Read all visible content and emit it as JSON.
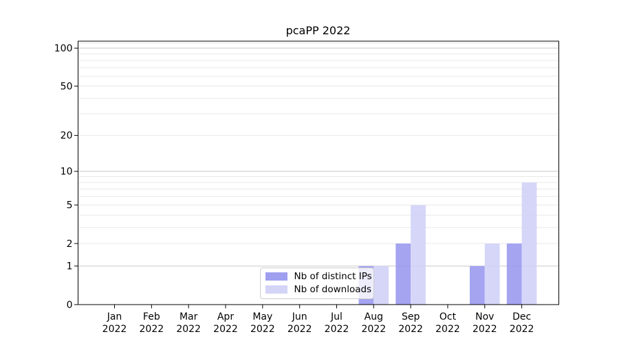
{
  "title": "pcaPP 2022",
  "chart_data": {
    "type": "bar",
    "categories": [
      "Jan",
      "Feb",
      "Mar",
      "Apr",
      "May",
      "Jun",
      "Jul",
      "Aug",
      "Sep",
      "Oct",
      "Nov",
      "Dec"
    ],
    "x_year_label": "2022",
    "series": [
      {
        "name": "Nb of distinct IPs",
        "color": "#9a9aef",
        "values": [
          0,
          0,
          0,
          0,
          0,
          0,
          0,
          1,
          2,
          0,
          1,
          2
        ]
      },
      {
        "name": "Nb of downloads",
        "color": "#d2d2f7",
        "values": [
          0,
          0,
          0,
          0,
          0,
          0,
          0,
          1,
          5,
          0,
          2,
          8
        ]
      }
    ],
    "y_axis": {
      "scale": "log1p",
      "tick_values": [
        0,
        1,
        2,
        5,
        10,
        20,
        50,
        100
      ],
      "major_grid_values": [
        1,
        10,
        100
      ],
      "minor_grid_values": [
        2,
        3,
        4,
        5,
        6,
        7,
        8,
        9,
        20,
        30,
        40,
        50,
        60,
        70,
        80,
        90,
        110
      ],
      "ylim": [
        0,
        113
      ]
    },
    "legend": {
      "position": "inside-bottom-center"
    },
    "grid": true,
    "colors": {
      "major_grid": "#c9c9c9",
      "minor_grid": "#e8e8e8",
      "spine": "#000000",
      "background": "#ffffff"
    }
  }
}
